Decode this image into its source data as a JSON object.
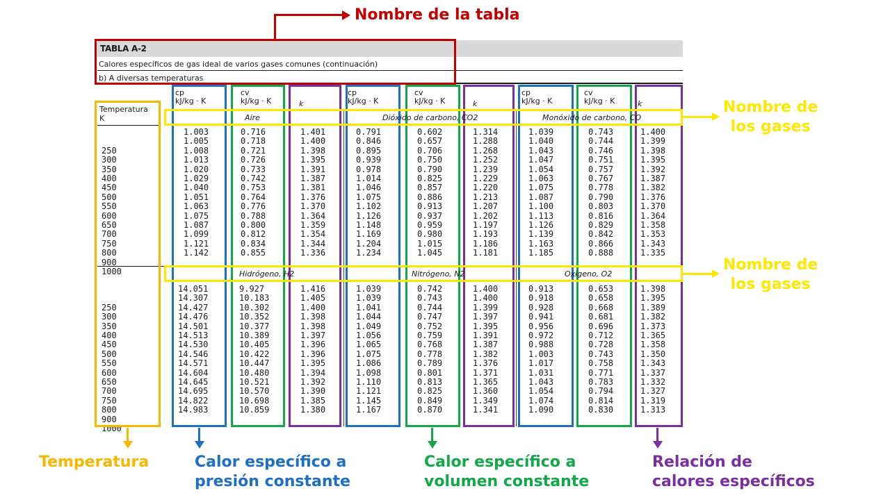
{
  "annotations": {
    "table_name": "Nombre de la tabla",
    "gas_names_1": "Nombre de\nlos gases",
    "gas_names_2": "Nombre de\nlos gases",
    "temperature": "Temperatura",
    "cp": "Calor específico a\npresión constante",
    "cv": "Calor específico a\nvolumen constante",
    "k": "Relación de\ncalores específicos"
  },
  "colors": {
    "title_red": "#c00000",
    "gas_yellow": "#ffe800",
    "temp_orange": "#f5b700",
    "cp_blue": "#1f6fc0",
    "cv_green": "#12a84a",
    "k_purple": "#7a2fa0"
  },
  "table": {
    "title": "TABLA A-2",
    "caption": "Calores específicos de gas ideal de varios gases comunes (continuación)",
    "subtitle": "b) A diversas temperaturas",
    "temp_header": "Temperatura\nK",
    "col_cp": "cp\nkJ/kg · K",
    "col_cv": "cv\nkJ/kg · K",
    "col_k": "k",
    "temperatures": "250\n300\n350\n400\n450\n500\n550\n600\n650\n700\n750\n800\n900\n1000",
    "gases_top": [
      "Aire",
      "Dióxido de carbono, CO2",
      "Monóxido de carbono, CO"
    ],
    "gases_bottom": [
      "Hidrógeno, H2",
      "Nitrógeno, N2",
      "Oxígeno, O2"
    ],
    "top": {
      "air_cp": "1.003\n1.005\n1.008\n1.013\n1.020\n1.029\n1.040\n1.051\n1.063\n1.075\n1.087\n1.099\n1.121\n1.142",
      "air_cv": "0.716\n0.718\n0.721\n0.726\n0.733\n0.742\n0.753\n0.764\n0.776\n0.788\n0.800\n0.812\n0.834\n0.855",
      "air_k": "1.401\n1.400\n1.398\n1.395\n1.391\n1.387\n1.381\n1.376\n1.370\n1.364\n1.359\n1.354\n1.344\n1.336",
      "co2_cp": "0.791\n0.846\n0.895\n0.939\n0.978\n1.014\n1.046\n1.075\n1.102\n1.126\n1.148\n1.169\n1.204\n1.234",
      "co2_cv": "0.602\n0.657\n0.706\n0.750\n0.790\n0.825\n0.857\n0.886\n0.913\n0.937\n0.959\n0.980\n1.015\n1.045",
      "co2_k": "1.314\n1.288\n1.268\n1.252\n1.239\n1.229\n1.220\n1.213\n1.207\n1.202\n1.197\n1.193\n1.186\n1.181",
      "co_cp": "1.039\n1.040\n1.043\n1.047\n1.054\n1.063\n1.075\n1.087\n1.100\n1.113\n1.126\n1.139\n1.163\n1.185",
      "co_cv": "0.743\n0.744\n0.746\n0.751\n0.757\n0.767\n0.778\n0.790\n0.803\n0.816\n0.829\n0.842\n0.866\n0.888",
      "co_k": "1.400\n1.399\n1.398\n1.395\n1.392\n1.387\n1.382\n1.376\n1.370\n1.364\n1.358\n1.353\n1.343\n1.335"
    },
    "bottom": {
      "h2_cp": "14.051\n14.307\n14.427\n14.476\n14.501\n14.513\n14.530\n14.546\n14.571\n14.604\n14.645\n14.695\n14.822\n14.983",
      "h2_cv": "9.927\n10.183\n10.302\n10.352\n10.377\n10.389\n10.405\n10.422\n10.447\n10.480\n10.521\n10.570\n10.698\n10.859",
      "h2_k": "1.416\n1.405\n1.400\n1.398\n1.398\n1.397\n1.396\n1.396\n1.395\n1.394\n1.392\n1.390\n1.385\n1.380",
      "n2_cp": "1.039\n1.039\n1.041\n1.044\n1.049\n1.056\n1.065\n1.075\n1.086\n1.098\n1.110\n1.121\n1.145\n1.167",
      "n2_cv": "0.742\n0.743\n0.744\n0.747\n0.752\n0.759\n0.768\n0.778\n0.789\n0.801\n0.813\n0.825\n0.849\n0.870",
      "n2_k": "1.400\n1.400\n1.399\n1.397\n1.395\n1.391\n1.387\n1.382\n1.376\n1.371\n1.365\n1.360\n1.349\n1.341",
      "o2_cp": "0.913\n0.918\n0.928\n0.941\n0.956\n0.972\n0.988\n1.003\n1.017\n1.031\n1.043\n1.054\n1.074\n1.090",
      "o2_cv": "0.653\n0.658\n0.668\n0.681\n0.696\n0.712\n0.728\n0.743\n0.758\n0.771\n0.783\n0.794\n0.814\n0.830",
      "o2_k": "1.398\n1.395\n1.389\n1.382\n1.373\n1.365\n1.358\n1.350\n1.343\n1.337\n1.332\n1.327\n1.319\n1.313"
    }
  }
}
